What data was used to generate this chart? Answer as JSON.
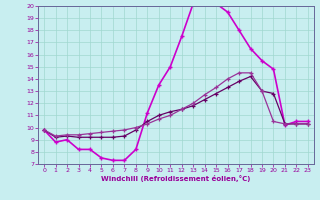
{
  "xlabel": "Windchill (Refroidissement éolien,°C)",
  "background_color": "#c8eef0",
  "grid_color": "#a0d8d0",
  "line_color": "#990099",
  "xlim": [
    -0.5,
    23.5
  ],
  "ylim": [
    7,
    20
  ],
  "yticks": [
    7,
    8,
    9,
    10,
    11,
    12,
    13,
    14,
    15,
    16,
    17,
    18,
    19,
    20
  ],
  "xticks": [
    0,
    1,
    2,
    3,
    4,
    5,
    6,
    7,
    8,
    9,
    10,
    11,
    12,
    13,
    14,
    15,
    16,
    17,
    18,
    19,
    20,
    21,
    22,
    23
  ],
  "curve1_x": [
    0,
    1,
    2,
    3,
    4,
    5,
    6,
    7,
    8,
    9,
    10,
    11,
    12,
    13,
    14,
    15,
    16,
    17,
    18,
    19,
    20,
    21,
    22,
    23
  ],
  "curve1_y": [
    9.8,
    8.8,
    9.0,
    8.2,
    8.2,
    7.5,
    7.3,
    7.3,
    8.2,
    11.2,
    13.5,
    15.0,
    17.5,
    20.2,
    20.5,
    20.2,
    19.5,
    18.0,
    16.5,
    15.5,
    14.8,
    10.2,
    10.5,
    10.5
  ],
  "curve2_x": [
    0,
    1,
    2,
    3,
    4,
    5,
    6,
    7,
    8,
    9,
    10,
    11,
    12,
    13,
    14,
    15,
    16,
    17,
    18,
    19,
    20,
    21,
    22,
    23
  ],
  "curve2_y": [
    9.8,
    9.2,
    9.3,
    9.2,
    9.2,
    9.2,
    9.2,
    9.3,
    9.8,
    10.5,
    11.0,
    11.3,
    11.5,
    11.8,
    12.3,
    12.8,
    13.3,
    13.8,
    14.2,
    13.0,
    12.8,
    10.3,
    10.3,
    10.3
  ],
  "curve3_x": [
    0,
    1,
    2,
    3,
    4,
    5,
    6,
    7,
    8,
    9,
    10,
    11,
    12,
    13,
    14,
    15,
    16,
    17,
    18,
    19,
    20,
    21,
    22,
    23
  ],
  "curve3_y": [
    9.8,
    9.3,
    9.4,
    9.4,
    9.5,
    9.6,
    9.7,
    9.8,
    10.0,
    10.3,
    10.7,
    11.0,
    11.5,
    12.0,
    12.7,
    13.3,
    14.0,
    14.5,
    14.5,
    13.0,
    10.5,
    10.3,
    10.3,
    10.3
  ]
}
